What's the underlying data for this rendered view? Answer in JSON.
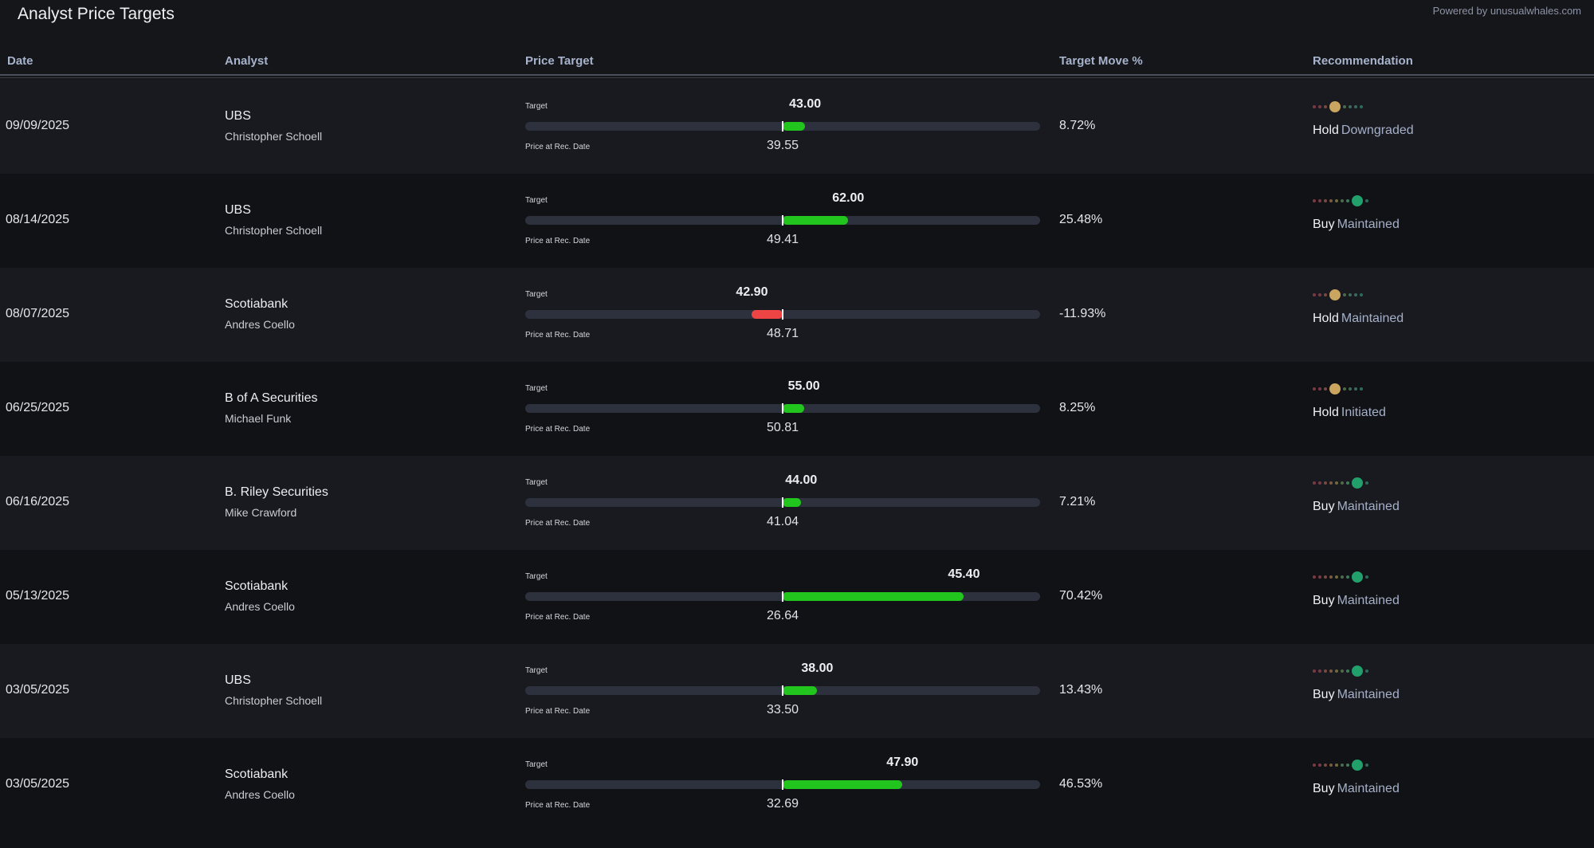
{
  "header": {
    "title": "Analyst Price Targets",
    "powered_by": "Powered by unusualwhales.com"
  },
  "columns": {
    "date": "Date",
    "analyst": "Analyst",
    "price_target": "Price Target",
    "target_move": "Target Move %",
    "recommendation": "Recommendation"
  },
  "labels": {
    "target": "Target",
    "price_at_rec": "Price at Rec. Date"
  },
  "colors": {
    "up": "#22c51e",
    "down": "#ef4444",
    "hold": "#c9a560",
    "buy": "#22a06b"
  },
  "rows": [
    {
      "date": "09/09/2025",
      "firm": "UBS",
      "analyst": "Christopher Schoell",
      "target": "43.00",
      "price": "39.55",
      "move": "8.72%",
      "move_value": 8.72,
      "rating": "Hold",
      "action": "Downgraded"
    },
    {
      "date": "08/14/2025",
      "firm": "UBS",
      "analyst": "Christopher Schoell",
      "target": "62.00",
      "price": "49.41",
      "move": "25.48%",
      "move_value": 25.48,
      "rating": "Buy",
      "action": "Maintained"
    },
    {
      "date": "08/07/2025",
      "firm": "Scotiabank",
      "analyst": "Andres Coello",
      "target": "42.90",
      "price": "48.71",
      "move": "-11.93%",
      "move_value": -11.93,
      "rating": "Hold",
      "action": "Maintained"
    },
    {
      "date": "06/25/2025",
      "firm": "B of A Securities",
      "analyst": "Michael Funk",
      "target": "55.00",
      "price": "50.81",
      "move": "8.25%",
      "move_value": 8.25,
      "rating": "Hold",
      "action": "Initiated"
    },
    {
      "date": "06/16/2025",
      "firm": "B. Riley Securities",
      "analyst": "Mike Crawford",
      "target": "44.00",
      "price": "41.04",
      "move": "7.21%",
      "move_value": 7.21,
      "rating": "Buy",
      "action": "Maintained"
    },
    {
      "date": "05/13/2025",
      "firm": "Scotiabank",
      "analyst": "Andres Coello",
      "target": "45.40",
      "price": "26.64",
      "move": "70.42%",
      "move_value": 70.42,
      "rating": "Buy",
      "action": "Maintained"
    },
    {
      "date": "03/05/2025",
      "firm": "UBS",
      "analyst": "Christopher Schoell",
      "target": "38.00",
      "price": "33.50",
      "move": "13.43%",
      "move_value": 13.43,
      "rating": "Buy",
      "action": "Maintained"
    },
    {
      "date": "03/05/2025",
      "firm": "Scotiabank",
      "analyst": "Andres Coello",
      "target": "47.90",
      "price": "32.69",
      "move": "46.53%",
      "move_value": 46.53,
      "rating": "Buy",
      "action": "Maintained"
    }
  ]
}
